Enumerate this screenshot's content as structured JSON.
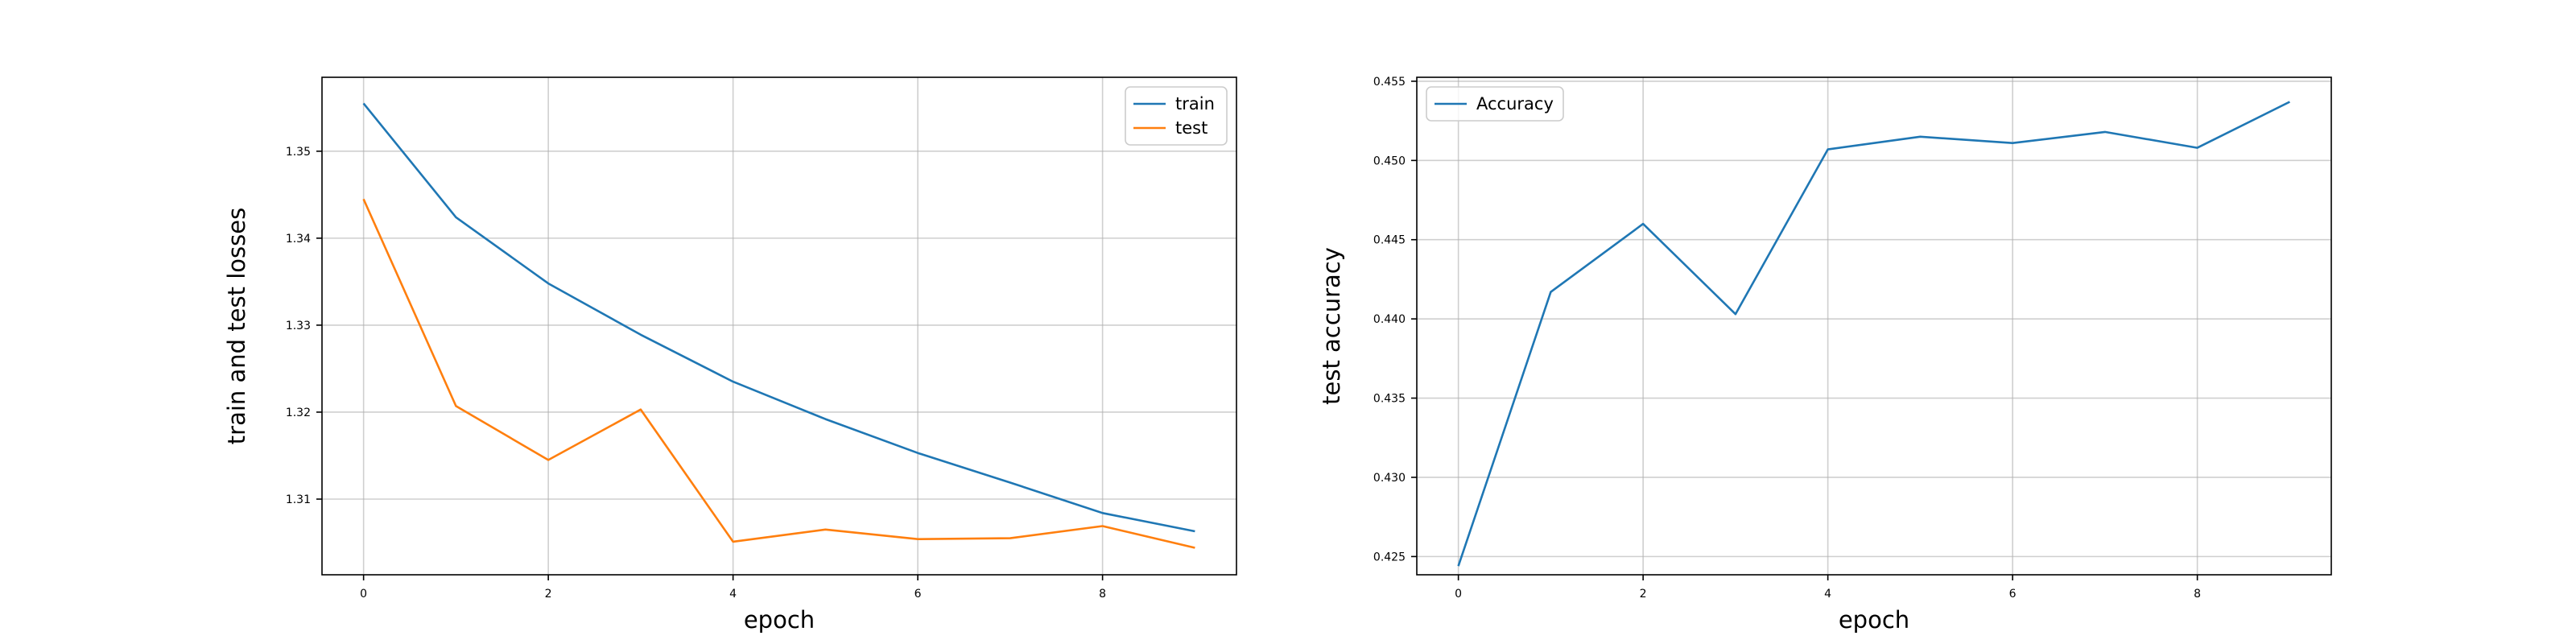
{
  "chart_data": [
    {
      "type": "line",
      "xlabel": "epoch",
      "ylabel": "train and test losses",
      "x": [
        0,
        1,
        2,
        3,
        4,
        5,
        6,
        7,
        8,
        9
      ],
      "xlim": [
        -0.45,
        9.45
      ],
      "ylim": [
        1.3013,
        1.3585
      ],
      "xticks": [
        0,
        2,
        4,
        6,
        8
      ],
      "yticks": [
        1.31,
        1.32,
        1.33,
        1.34,
        1.35
      ],
      "xtick_labels": [
        "0",
        "2",
        "4",
        "6",
        "8"
      ],
      "ytick_labels": [
        "1.31",
        "1.32",
        "1.33",
        "1.34",
        "1.35"
      ],
      "grid": true,
      "legend_position": "top-right",
      "series": [
        {
          "name": "train",
          "color": "#1f77b4",
          "values": [
            1.3555,
            1.3424,
            1.3348,
            1.3289,
            1.3235,
            1.3192,
            1.3153,
            1.3119,
            1.3084,
            1.3063
          ]
        },
        {
          "name": "test",
          "color": "#ff7f0e",
          "values": [
            1.3445,
            1.3207,
            1.3145,
            1.3203,
            1.3051,
            1.3065,
            1.3054,
            1.3055,
            1.3069,
            1.3044
          ]
        }
      ]
    },
    {
      "type": "line",
      "xlabel": "epoch",
      "ylabel": "test accuracy",
      "x": [
        0,
        1,
        2,
        3,
        4,
        5,
        6,
        7,
        8,
        9
      ],
      "xlim": [
        -0.45,
        9.45
      ],
      "ylim": [
        0.42385,
        0.45525
      ],
      "xticks": [
        0,
        2,
        4,
        6,
        8
      ],
      "yticks": [
        0.425,
        0.43,
        0.435,
        0.44,
        0.445,
        0.45,
        0.455
      ],
      "xtick_labels": [
        "0",
        "2",
        "4",
        "6",
        "8"
      ],
      "ytick_labels": [
        "0.425",
        "0.430",
        "0.435",
        "0.440",
        "0.445",
        "0.450",
        "0.455"
      ],
      "grid": true,
      "legend_position": "top-left",
      "series": [
        {
          "name": "Accuracy",
          "color": "#1f77b4",
          "values": [
            0.4244,
            0.4417,
            0.446,
            0.4403,
            0.4507,
            0.4515,
            0.4511,
            0.4518,
            0.4508,
            0.4537
          ]
        }
      ]
    }
  ]
}
